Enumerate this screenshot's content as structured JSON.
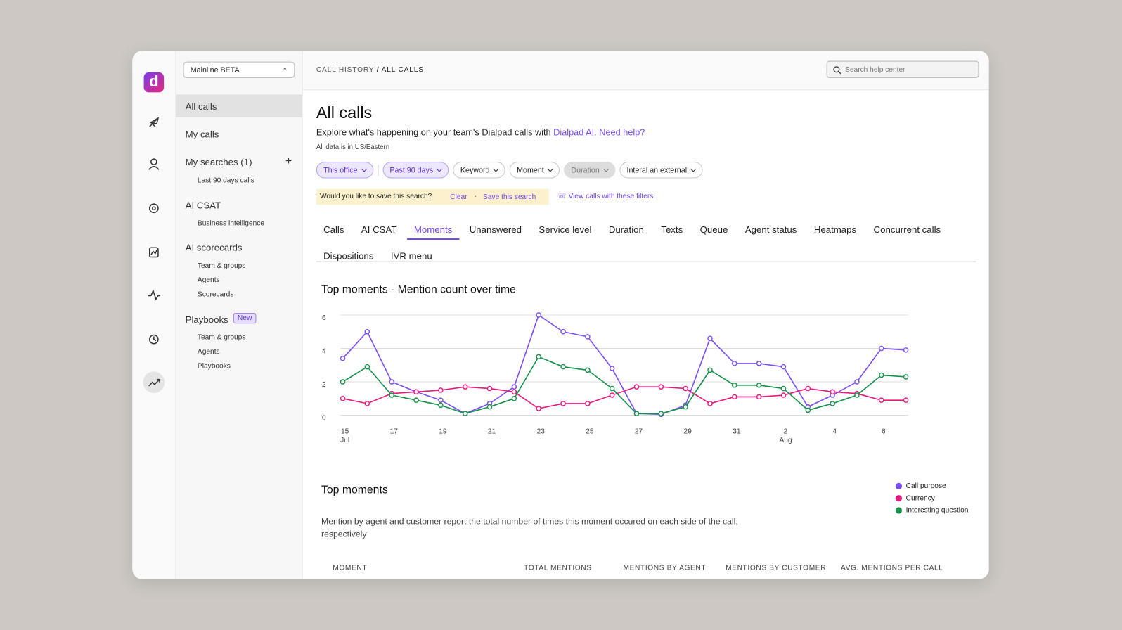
{
  "brand_mark": "d",
  "workspace": "Mainline BETA",
  "search_placeholder": "Search help center",
  "breadcrumb": {
    "parent": "CALL HISTORY",
    "separator": "/",
    "current": "ALL CALLS"
  },
  "nav": {
    "all_calls": "All calls",
    "my_calls": "My calls",
    "my_searches": "My searches (1)",
    "add": "+",
    "last_90": "Last 90 days calls",
    "ai_csat": "AI CSAT",
    "business_intelligence": "Business intelligence",
    "ai_scorecards": "AI scorecards",
    "sc_teams": "Team & groups",
    "sc_agents": "Agents",
    "sc_scorecards": "Scorecards",
    "playbooks": "Playbooks",
    "new_badge": "New",
    "pb_teams": "Team & groups",
    "pb_agents": "Agents",
    "pb_playbooks": "Playbooks"
  },
  "header": {
    "title": "All calls",
    "subtitle": "Explore what's happening on your team's Dialpad calls with",
    "link": "Dialpad AI.",
    "help": "Need help?",
    "note": "All data is in US/Eastern"
  },
  "filters": [
    {
      "label": "This office",
      "state": "active"
    },
    {
      "label": "Past 90 days",
      "state": "active"
    },
    {
      "label": "Keyword",
      "state": "default"
    },
    {
      "label": "Moment",
      "state": "default"
    },
    {
      "label": "Duration",
      "state": "disabled"
    },
    {
      "label": "Interal an external",
      "state": "default"
    }
  ],
  "save_bar": {
    "question": "Would you like to save this search?",
    "clear": "Clear",
    "separator": "·",
    "save": "Save this search",
    "view": "View calls with these filters"
  },
  "tabs": [
    "Calls",
    "AI CSAT",
    "Moments",
    "Unanswered",
    "Service level",
    "Duration",
    "Texts",
    "Queue",
    "Agent status",
    "Heatmaps",
    "Concurrent calls",
    "Dispositions",
    "IVR menu"
  ],
  "active_tab": "Moments",
  "chart_data": {
    "type": "line",
    "title": "Top moments - Mention count over time",
    "categories": [
      "15",
      null,
      "17",
      null,
      "19",
      null,
      "21",
      null,
      "23",
      null,
      "25",
      null,
      "27",
      null,
      "29",
      null,
      "31",
      null,
      "2",
      null,
      "4",
      null,
      "6",
      null
    ],
    "x_sublabels": [
      "Jul",
      null,
      null,
      null,
      null,
      null,
      null,
      null,
      null,
      null,
      null,
      null,
      null,
      null,
      null,
      null,
      null,
      null,
      "Aug",
      null,
      null,
      null,
      null,
      null
    ],
    "series": [
      {
        "name": "Call purpose",
        "color": "#7b4ff2",
        "values": [
          3.4,
          5.0,
          2.0,
          1.4,
          0.9,
          0.1,
          0.7,
          1.7,
          6.0,
          5.0,
          4.7,
          2.8,
          0.1,
          0.05,
          0.6,
          4.6,
          3.1,
          3.1,
          2.9,
          0.5,
          1.2,
          2.0,
          4.0,
          3.9
        ]
      },
      {
        "name": "Currency",
        "color": "#e8197f",
        "values": [
          1.0,
          0.7,
          1.3,
          1.4,
          1.5,
          1.7,
          1.6,
          1.4,
          0.4,
          0.7,
          0.7,
          1.2,
          1.7,
          1.7,
          1.6,
          0.7,
          1.1,
          1.1,
          1.2,
          1.6,
          1.4,
          1.3,
          0.9,
          0.9
        ]
      },
      {
        "name": "Interesting question",
        "color": "#17904a",
        "values": [
          2.0,
          2.9,
          1.2,
          0.9,
          0.6,
          0.1,
          0.5,
          1.0,
          3.5,
          2.9,
          2.7,
          1.6,
          0.1,
          0.1,
          0.5,
          2.7,
          1.8,
          1.8,
          1.6,
          0.3,
          0.7,
          1.2,
          2.4,
          2.3
        ]
      }
    ],
    "ylim": [
      0,
      6
    ],
    "yticks": [
      0,
      2,
      4,
      6
    ],
    "grid": true,
    "legend": "right"
  },
  "section": {
    "title": "Top moments",
    "description": "Mention by agent and customer report the total number of times this moment occured on each side of the call, respectively"
  },
  "table": {
    "columns": [
      "MOMENT",
      "TOTAL MENTIONS",
      "MENTIONS BY AGENT",
      "MENTIONS BY CUSTOMER",
      "AVG. MENTIONS PER CALL"
    ]
  }
}
